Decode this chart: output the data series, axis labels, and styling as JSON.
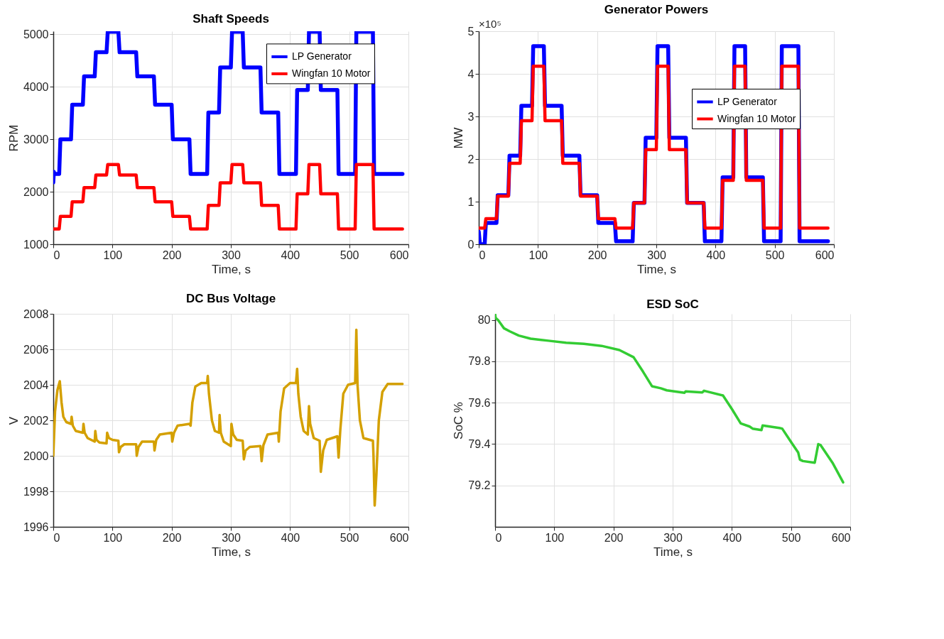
{
  "chart_data": [
    {
      "type": "line",
      "title": "Shaft Speeds",
      "xlabel": "Time, s",
      "ylabel": "RPM",
      "xlim": [
        0,
        600
      ],
      "xticks": [
        0,
        100,
        200,
        300,
        400,
        500,
        600
      ],
      "ylim": [
        1000,
        5060
      ],
      "yticks": [
        1000,
        2000,
        3000,
        4000,
        5000
      ],
      "grid": true,
      "legend": "top right",
      "series": [
        {
          "name": "LP Generator",
          "color": "#0000ff",
          "x": [
            0,
            1,
            2,
            10,
            12,
            30,
            32,
            50,
            52,
            70,
            72,
            90,
            92,
            110,
            112,
            140,
            142,
            170,
            172,
            200,
            202,
            230,
            232,
            260,
            262,
            280,
            282,
            300,
            302,
            320,
            322,
            350,
            352,
            380,
            382,
            410,
            412,
            430,
            432,
            450,
            452,
            480,
            482,
            510,
            512,
            540,
            542,
            590
          ],
          "values": [
            2180,
            2380,
            2340,
            2340,
            3000,
            3000,
            3660,
            3660,
            4200,
            4200,
            4660,
            4660,
            5050,
            5050,
            4660,
            4660,
            4200,
            4200,
            3660,
            3660,
            3000,
            3000,
            2340,
            2340,
            3510,
            3510,
            4370,
            4370,
            5050,
            5050,
            4370,
            4370,
            3510,
            3510,
            2340,
            2340,
            3940,
            3940,
            5050,
            5050,
            3940,
            3940,
            2340,
            2340,
            5050,
            5050,
            2340,
            2340
          ]
        },
        {
          "name": "Wingfan 10 Motor",
          "color": "#ff0000",
          "x": [
            0,
            10,
            12,
            30,
            32,
            50,
            52,
            70,
            72,
            90,
            92,
            110,
            112,
            140,
            142,
            170,
            172,
            200,
            202,
            230,
            232,
            260,
            262,
            280,
            282,
            300,
            302,
            320,
            322,
            350,
            352,
            380,
            382,
            410,
            412,
            430,
            432,
            450,
            452,
            480,
            482,
            510,
            512,
            540,
            542,
            590
          ],
          "values": [
            1290,
            1290,
            1530,
            1530,
            1810,
            1810,
            2080,
            2080,
            2320,
            2320,
            2520,
            2520,
            2320,
            2320,
            2080,
            2080,
            1810,
            1810,
            1530,
            1530,
            1290,
            1290,
            1740,
            1740,
            2170,
            2170,
            2520,
            2520,
            2170,
            2170,
            1740,
            1740,
            1290,
            1290,
            1960,
            1960,
            2520,
            2520,
            1960,
            1960,
            1290,
            1290,
            2520,
            2520,
            1290,
            1290
          ]
        }
      ]
    },
    {
      "type": "line",
      "title": "Generator Powers",
      "xlabel": "Time, s",
      "ylabel": "MW",
      "annotations": [
        "×10⁵"
      ],
      "xlim": [
        0,
        600
      ],
      "xticks": [
        0,
        100,
        200,
        300,
        400,
        500,
        600
      ],
      "ylim": [
        0,
        5
      ],
      "yticks": [
        0,
        1,
        2,
        3,
        4,
        5
      ],
      "grid": true,
      "legend": "right",
      "series": [
        {
          "name": "LP Generator",
          "color": "#0000ff",
          "x": [
            0,
            2,
            4,
            10,
            12,
            30,
            32,
            50,
            52,
            70,
            72,
            90,
            92,
            110,
            112,
            140,
            142,
            170,
            172,
            200,
            202,
            230,
            232,
            260,
            262,
            280,
            282,
            300,
            302,
            320,
            322,
            350,
            352,
            380,
            382,
            410,
            412,
            430,
            432,
            450,
            452,
            480,
            482,
            510,
            512,
            540,
            542,
            590
          ],
          "values": [
            0.3,
            0,
            0,
            0,
            0.5,
            0.5,
            1.15,
            1.15,
            2.08,
            2.08,
            3.25,
            3.25,
            4.65,
            4.65,
            3.25,
            3.25,
            2.08,
            2.08,
            1.15,
            1.15,
            0.5,
            0.5,
            0.07,
            0.07,
            0.97,
            0.97,
            2.5,
            2.5,
            4.65,
            4.65,
            2.5,
            2.5,
            0.97,
            0.97,
            0.07,
            0.07,
            1.57,
            1.57,
            4.65,
            4.65,
            1.57,
            1.57,
            0.07,
            0.07,
            4.65,
            4.65,
            0.07,
            0.07
          ]
        },
        {
          "name": "Wingfan 10 Motor",
          "color": "#ff0000",
          "x": [
            0,
            10,
            12,
            30,
            32,
            50,
            52,
            70,
            72,
            90,
            92,
            110,
            112,
            140,
            142,
            170,
            172,
            200,
            202,
            230,
            232,
            260,
            262,
            280,
            282,
            300,
            302,
            320,
            322,
            350,
            352,
            380,
            382,
            410,
            412,
            430,
            432,
            450,
            452,
            480,
            482,
            510,
            512,
            540,
            542,
            590
          ],
          "values": [
            0.38,
            0.38,
            0.6,
            0.6,
            1.13,
            1.13,
            1.9,
            1.9,
            2.9,
            2.9,
            4.18,
            4.18,
            2.9,
            2.9,
            1.9,
            1.9,
            1.13,
            1.13,
            0.6,
            0.6,
            0.38,
            0.38,
            0.97,
            0.97,
            2.22,
            2.22,
            4.18,
            4.18,
            2.22,
            2.22,
            0.97,
            0.97,
            0.38,
            0.38,
            1.5,
            1.5,
            4.18,
            4.18,
            1.5,
            1.5,
            0.38,
            0.38,
            4.18,
            4.18,
            0.38,
            0.38
          ]
        }
      ]
    },
    {
      "type": "line",
      "title": "DC Bus Voltage",
      "xlabel": "Time, s",
      "ylabel": "V",
      "xlim": [
        0,
        600
      ],
      "xticks": [
        0,
        100,
        200,
        300,
        400,
        500,
        600
      ],
      "ylim": [
        1996,
        2008
      ],
      "yticks": [
        1996,
        1998,
        2000,
        2002,
        2004,
        2006,
        2008
      ],
      "grid": true,
      "series": [
        {
          "color": "#d4a000",
          "x": [
            0,
            3,
            7,
            11,
            14,
            17,
            22,
            30,
            31,
            33,
            38,
            50,
            51,
            53,
            58,
            70,
            71,
            73,
            78,
            90,
            91,
            94,
            100,
            110,
            111,
            114,
            120,
            140,
            141,
            144,
            150,
            170,
            171,
            174,
            180,
            200,
            201,
            204,
            210,
            230,
            232,
            235,
            240,
            250,
            260,
            261,
            263,
            268,
            273,
            280,
            281,
            283,
            288,
            300,
            301,
            304,
            310,
            320,
            322,
            325,
            332,
            350,
            352,
            355,
            362,
            380,
            381,
            384,
            390,
            400,
            410,
            412,
            414,
            418,
            423,
            430,
            432,
            434,
            440,
            450,
            452,
            456,
            462,
            480,
            482,
            485,
            490,
            498,
            510,
            512,
            514,
            518,
            524,
            540,
            541,
            543,
            546,
            550,
            556,
            565,
            590
          ],
          "values": [
            2000,
            2002.5,
            2003.7,
            2004.2,
            2003,
            2002.2,
            2001.9,
            2001.8,
            2002.2,
            2001.7,
            2001.4,
            2001.3,
            2001.8,
            2001.3,
            2001,
            2000.8,
            2001.4,
            2000.9,
            2000.75,
            2000.7,
            2001.3,
            2001,
            2000.9,
            2000.85,
            2000.2,
            2000.5,
            2000.65,
            2000.65,
            2000,
            2000.5,
            2000.8,
            2000.8,
            2000.3,
            2000.9,
            2001.2,
            2001.3,
            2000.8,
            2001.3,
            2001.7,
            2001.8,
            2001.7,
            2003,
            2003.9,
            2004.1,
            2004.1,
            2004.5,
            2003.5,
            2002,
            2001.4,
            2001.3,
            2002.3,
            2001.3,
            2000.8,
            2000.55,
            2001.8,
            2001.2,
            2000.9,
            2000.85,
            1999.8,
            2000.3,
            2000.5,
            2000.55,
            1999.7,
            2000.6,
            2001.2,
            2001.3,
            2000.8,
            2002.5,
            2003.8,
            2004.1,
            2004.1,
            2004.9,
            2003.5,
            2002.2,
            2001.4,
            2001.2,
            2002.8,
            2001.8,
            2001,
            2000.85,
            1999.1,
            2000.3,
            2000.9,
            2001.1,
            1999.9,
            2001.5,
            2003.5,
            2004,
            2004.1,
            2007.1,
            2004,
            2002,
            2001,
            2000.85,
            2000,
            1997.2,
            1999,
            2002,
            2003.6,
            2004.05,
            2004.05
          ]
        }
      ]
    },
    {
      "type": "line",
      "title": "ESD SoC",
      "xlabel": "Time, s",
      "ylabel": "SoC %",
      "xlim": [
        0,
        600
      ],
      "xticks": [
        0,
        100,
        200,
        300,
        400,
        500,
        600
      ],
      "ylim": [
        79.0,
        80.03
      ],
      "yticks": [
        79.2,
        79.4,
        79.6,
        79.8,
        80
      ],
      "grid": true,
      "series": [
        {
          "color": "#33cc33",
          "x": [
            0,
            1,
            5,
            10,
            15,
            25,
            40,
            60,
            90,
            120,
            150,
            180,
            210,
            234,
            250,
            265,
            280,
            290,
            320,
            322,
            350,
            353,
            385,
            400,
            415,
            430,
            435,
            450,
            452,
            480,
            485,
            500,
            512,
            515,
            520,
            540,
            546,
            550,
            570,
            588
          ],
          "values": [
            80.03,
            80.01,
            80,
            79.98,
            79.96,
            79.945,
            79.925,
            79.91,
            79.9,
            79.89,
            79.885,
            79.875,
            79.855,
            79.82,
            79.75,
            79.68,
            79.67,
            79.66,
            79.648,
            79.655,
            79.65,
            79.658,
            79.635,
            79.57,
            79.5,
            79.485,
            79.475,
            79.468,
            79.49,
            79.478,
            79.475,
            79.41,
            79.36,
            79.325,
            79.318,
            79.31,
            79.4,
            79.395,
            79.31,
            79.215
          ]
        }
      ]
    }
  ]
}
